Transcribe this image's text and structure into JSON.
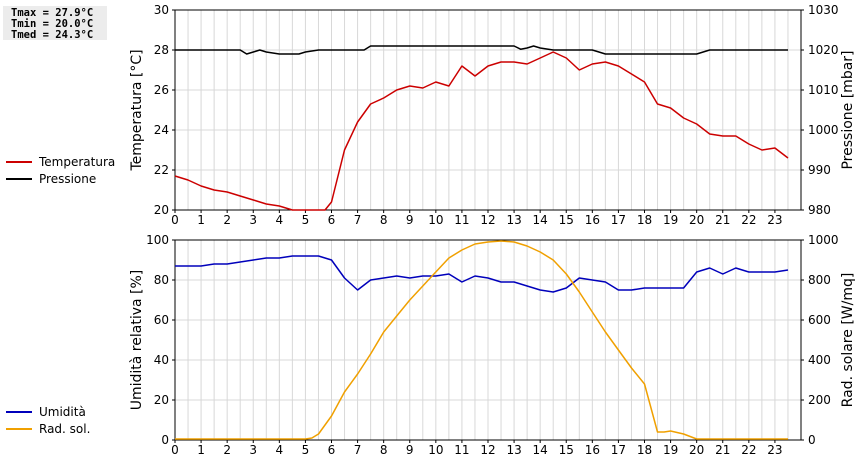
{
  "stats": {
    "tmax": "Tmax = 27.9°C",
    "tmin": "Tmin = 20.0°C",
    "tmed": "Tmed = 24.3°C"
  },
  "legend_top": [
    {
      "label": "Temperatura",
      "color": "#cc0000"
    },
    {
      "label": "Pressione",
      "color": "#000000"
    }
  ],
  "legend_bottom": [
    {
      "label": "Umidità",
      "color": "#0000bb"
    },
    {
      "label": "Rad. sol.",
      "color": "#f0a000"
    }
  ],
  "chart_data": [
    {
      "type": "line",
      "xlim": [
        0,
        24
      ],
      "xticks": [
        "0",
        "1",
        "2",
        "3",
        "4",
        "5",
        "6",
        "7",
        "8",
        "9",
        "10",
        "11",
        "12",
        "13",
        "14",
        "15",
        "16",
        "17",
        "18",
        "19",
        "20",
        "21",
        "22",
        "23"
      ],
      "ylabel_left": "Temperatura [°C]",
      "ylabel_right": "Pressione [mbar]",
      "ylim_left": [
        20,
        30
      ],
      "yticks_left": [
        "20",
        "22",
        "24",
        "26",
        "28",
        "30"
      ],
      "ylim_right": [
        980,
        1030
      ],
      "yticks_right": [
        "980",
        "990",
        "1000",
        "1010",
        "1020",
        "1030"
      ],
      "grid": true,
      "series": [
        {
          "name": "Temperatura",
          "axis": "left",
          "color": "#cc0000",
          "x": [
            0,
            0.5,
            1,
            1.5,
            2,
            2.5,
            3,
            3.5,
            4,
            4.5,
            5,
            5.5,
            5.75,
            6,
            6.5,
            7,
            7.5,
            8,
            8.5,
            9,
            9.5,
            10,
            10.5,
            11,
            11.5,
            12,
            12.5,
            13,
            13.5,
            14,
            14.5,
            15,
            15.5,
            16,
            16.5,
            17,
            17.5,
            18,
            18.5,
            19,
            19.5,
            20,
            20.5,
            21,
            21.5,
            22,
            22.5,
            23,
            23.5
          ],
          "values": [
            21.7,
            21.5,
            21.2,
            21.0,
            20.9,
            20.7,
            20.5,
            20.3,
            20.2,
            20.0,
            20.0,
            20.0,
            20.0,
            20.4,
            23.0,
            24.4,
            25.3,
            25.6,
            26.0,
            26.2,
            26.1,
            26.4,
            26.2,
            27.2,
            26.7,
            27.2,
            27.4,
            27.4,
            27.3,
            27.6,
            27.9,
            27.6,
            27.0,
            27.3,
            27.4,
            27.2,
            26.8,
            26.4,
            25.3,
            25.1,
            24.6,
            24.3,
            23.8,
            23.7,
            23.7,
            23.3,
            23.0,
            23.1,
            22.6
          ]
        },
        {
          "name": "Pressione",
          "axis": "right",
          "color": "#000000",
          "x": [
            0,
            0.5,
            1,
            1.5,
            2,
            2.5,
            2.75,
            3,
            3.25,
            3.5,
            4,
            4.5,
            4.75,
            5,
            5.5,
            6,
            6.5,
            7,
            7.25,
            7.5,
            8,
            8.5,
            9,
            9.5,
            10,
            10.5,
            11,
            11.5,
            12,
            12.5,
            13,
            13.25,
            13.5,
            13.75,
            14,
            14.5,
            15,
            15.5,
            16,
            16.25,
            16.5,
            17,
            17.5,
            18,
            18.5,
            19,
            19.5,
            20,
            20.25,
            20.5,
            21,
            21.5,
            22,
            22.5,
            23,
            23.5
          ],
          "values": [
            1020,
            1020,
            1020,
            1020,
            1020,
            1020,
            1019,
            1019.5,
            1020,
            1019.5,
            1019,
            1019,
            1019,
            1019.5,
            1020,
            1020,
            1020,
            1020,
            1020,
            1021,
            1021,
            1021,
            1021,
            1021,
            1021,
            1021,
            1021,
            1021,
            1021,
            1021,
            1021,
            1020.2,
            1020.5,
            1021,
            1020.5,
            1020,
            1020,
            1020,
            1020,
            1019.5,
            1019,
            1019,
            1019,
            1019,
            1019,
            1019,
            1019,
            1019,
            1019.5,
            1020,
            1020,
            1020,
            1020,
            1020,
            1020,
            1020
          ]
        }
      ]
    },
    {
      "type": "line",
      "xlim": [
        0,
        24
      ],
      "xticks": [
        "0",
        "1",
        "2",
        "3",
        "4",
        "5",
        "6",
        "7",
        "8",
        "9",
        "10",
        "11",
        "12",
        "13",
        "14",
        "15",
        "16",
        "17",
        "18",
        "19",
        "20",
        "21",
        "22",
        "23"
      ],
      "ylabel_left": "Umidità relativa [%]",
      "ylabel_right": "Rad. solare [W/mq]",
      "ylim_left": [
        0,
        100
      ],
      "yticks_left": [
        "0",
        "20",
        "40",
        "60",
        "80",
        "100"
      ],
      "ylim_right": [
        0,
        1000
      ],
      "yticks_right": [
        "0",
        "200",
        "400",
        "600",
        "800",
        "1000"
      ],
      "grid": true,
      "series": [
        {
          "name": "Umidità",
          "axis": "left",
          "color": "#0000bb",
          "x": [
            0,
            0.5,
            1,
            1.5,
            2,
            2.5,
            3,
            3.5,
            4,
            4.5,
            5,
            5.5,
            6,
            6.5,
            7,
            7.5,
            8,
            8.5,
            9,
            9.5,
            10,
            10.5,
            11,
            11.5,
            12,
            12.5,
            13,
            13.5,
            14,
            14.5,
            15,
            15.5,
            16,
            16.5,
            17,
            17.5,
            18,
            18.5,
            19,
            19.5,
            20,
            20.5,
            21,
            21.5,
            22,
            22.5,
            23,
            23.5
          ],
          "values": [
            87,
            87,
            87,
            88,
            88,
            89,
            90,
            91,
            91,
            92,
            92,
            92,
            90,
            81,
            75,
            80,
            81,
            82,
            81,
            82,
            82,
            83,
            79,
            82,
            81,
            79,
            79,
            77,
            75,
            74,
            76,
            81,
            80,
            79,
            75,
            75,
            76,
            76,
            76,
            76,
            84,
            86,
            83,
            86,
            84,
            84,
            84,
            85
          ]
        },
        {
          "name": "Rad. sol.",
          "axis": "right",
          "color": "#f0a000",
          "x": [
            0,
            0.5,
            1,
            1.5,
            2,
            2.5,
            3,
            3.5,
            4,
            4.5,
            5,
            5.25,
            5.5,
            6,
            6.5,
            7,
            7.5,
            8,
            8.5,
            9,
            9.5,
            10,
            10.5,
            11,
            11.5,
            12,
            12.5,
            13,
            13.5,
            14,
            14.5,
            15,
            15.5,
            16,
            16.5,
            17,
            17.5,
            18,
            18.5,
            18.75,
            19,
            19.5,
            20,
            20.5,
            21,
            21.5,
            22,
            22.5,
            23,
            23.5
          ],
          "values": [
            5,
            5,
            5,
            5,
            5,
            5,
            5,
            5,
            5,
            5,
            5,
            10,
            30,
            120,
            240,
            330,
            430,
            540,
            620,
            700,
            770,
            840,
            910,
            950,
            980,
            990,
            995,
            990,
            970,
            940,
            900,
            830,
            740,
            640,
            540,
            450,
            360,
            280,
            40,
            40,
            45,
            30,
            5,
            5,
            5,
            5,
            5,
            5,
            5,
            5
          ]
        }
      ]
    }
  ]
}
